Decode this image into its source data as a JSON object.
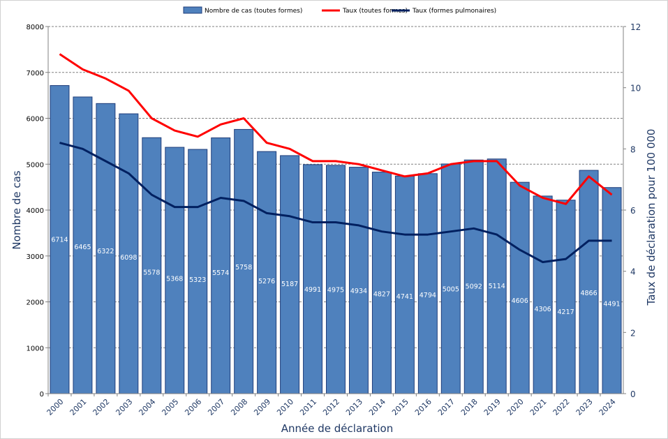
{
  "chart_data": {
    "type": "bar+line",
    "xlabel": "Année de déclaration",
    "ylabel": "Nombre de cas",
    "y2label": "Taux de déclaration pour 100 000",
    "ylim": [
      0,
      8000
    ],
    "y2lim": [
      0,
      12
    ],
    "yticks": [
      "0",
      "1000",
      "2000",
      "3000",
      "4000",
      "5000",
      "6000",
      "7000",
      "8000"
    ],
    "y2ticks": [
      "0",
      "2",
      "4",
      "6",
      "8",
      "10",
      "12"
    ],
    "grid": true,
    "legend": "top",
    "categories": [
      "2000",
      "2001",
      "2002",
      "2003",
      "2004",
      "2005",
      "2006",
      "2007",
      "2008",
      "2009",
      "2010",
      "2011",
      "2012",
      "2013",
      "2014",
      "2015",
      "2016",
      "2017",
      "2018",
      "2019",
      "2020",
      "2021",
      "2022",
      "2023",
      "2024"
    ],
    "series": [
      {
        "name": "Nombre de cas (toutes formes)",
        "type": "bar",
        "axis": "left",
        "color": "#4f81bd",
        "values": [
          6714,
          6465,
          6322,
          6098,
          5578,
          5368,
          5323,
          5574,
          5758,
          5276,
          5187,
          4991,
          4975,
          4934,
          4827,
          4741,
          4794,
          5005,
          5092,
          5114,
          4606,
          4306,
          4217,
          4866,
          4491
        ]
      },
      {
        "name": "Taux (toutes formes)",
        "type": "line",
        "axis": "right",
        "color": "#ff0000",
        "values": [
          11.1,
          10.6,
          10.3,
          9.9,
          9.0,
          8.6,
          8.4,
          8.8,
          9.0,
          8.2,
          8.0,
          7.6,
          7.6,
          7.5,
          7.3,
          7.1,
          7.2,
          7.5,
          7.6,
          7.6,
          6.8,
          6.4,
          6.2,
          7.1,
          6.5
        ]
      },
      {
        "name": "Taux (formes pulmonaires)",
        "type": "line",
        "axis": "right",
        "color": "#002060",
        "values": [
          8.2,
          8.0,
          7.6,
          7.2,
          6.5,
          6.1,
          6.1,
          6.4,
          6.3,
          5.9,
          5.8,
          5.6,
          5.6,
          5.5,
          5.3,
          5.2,
          5.2,
          5.3,
          5.4,
          5.2,
          4.7,
          4.3,
          4.4,
          5.0,
          5.0
        ]
      }
    ]
  }
}
